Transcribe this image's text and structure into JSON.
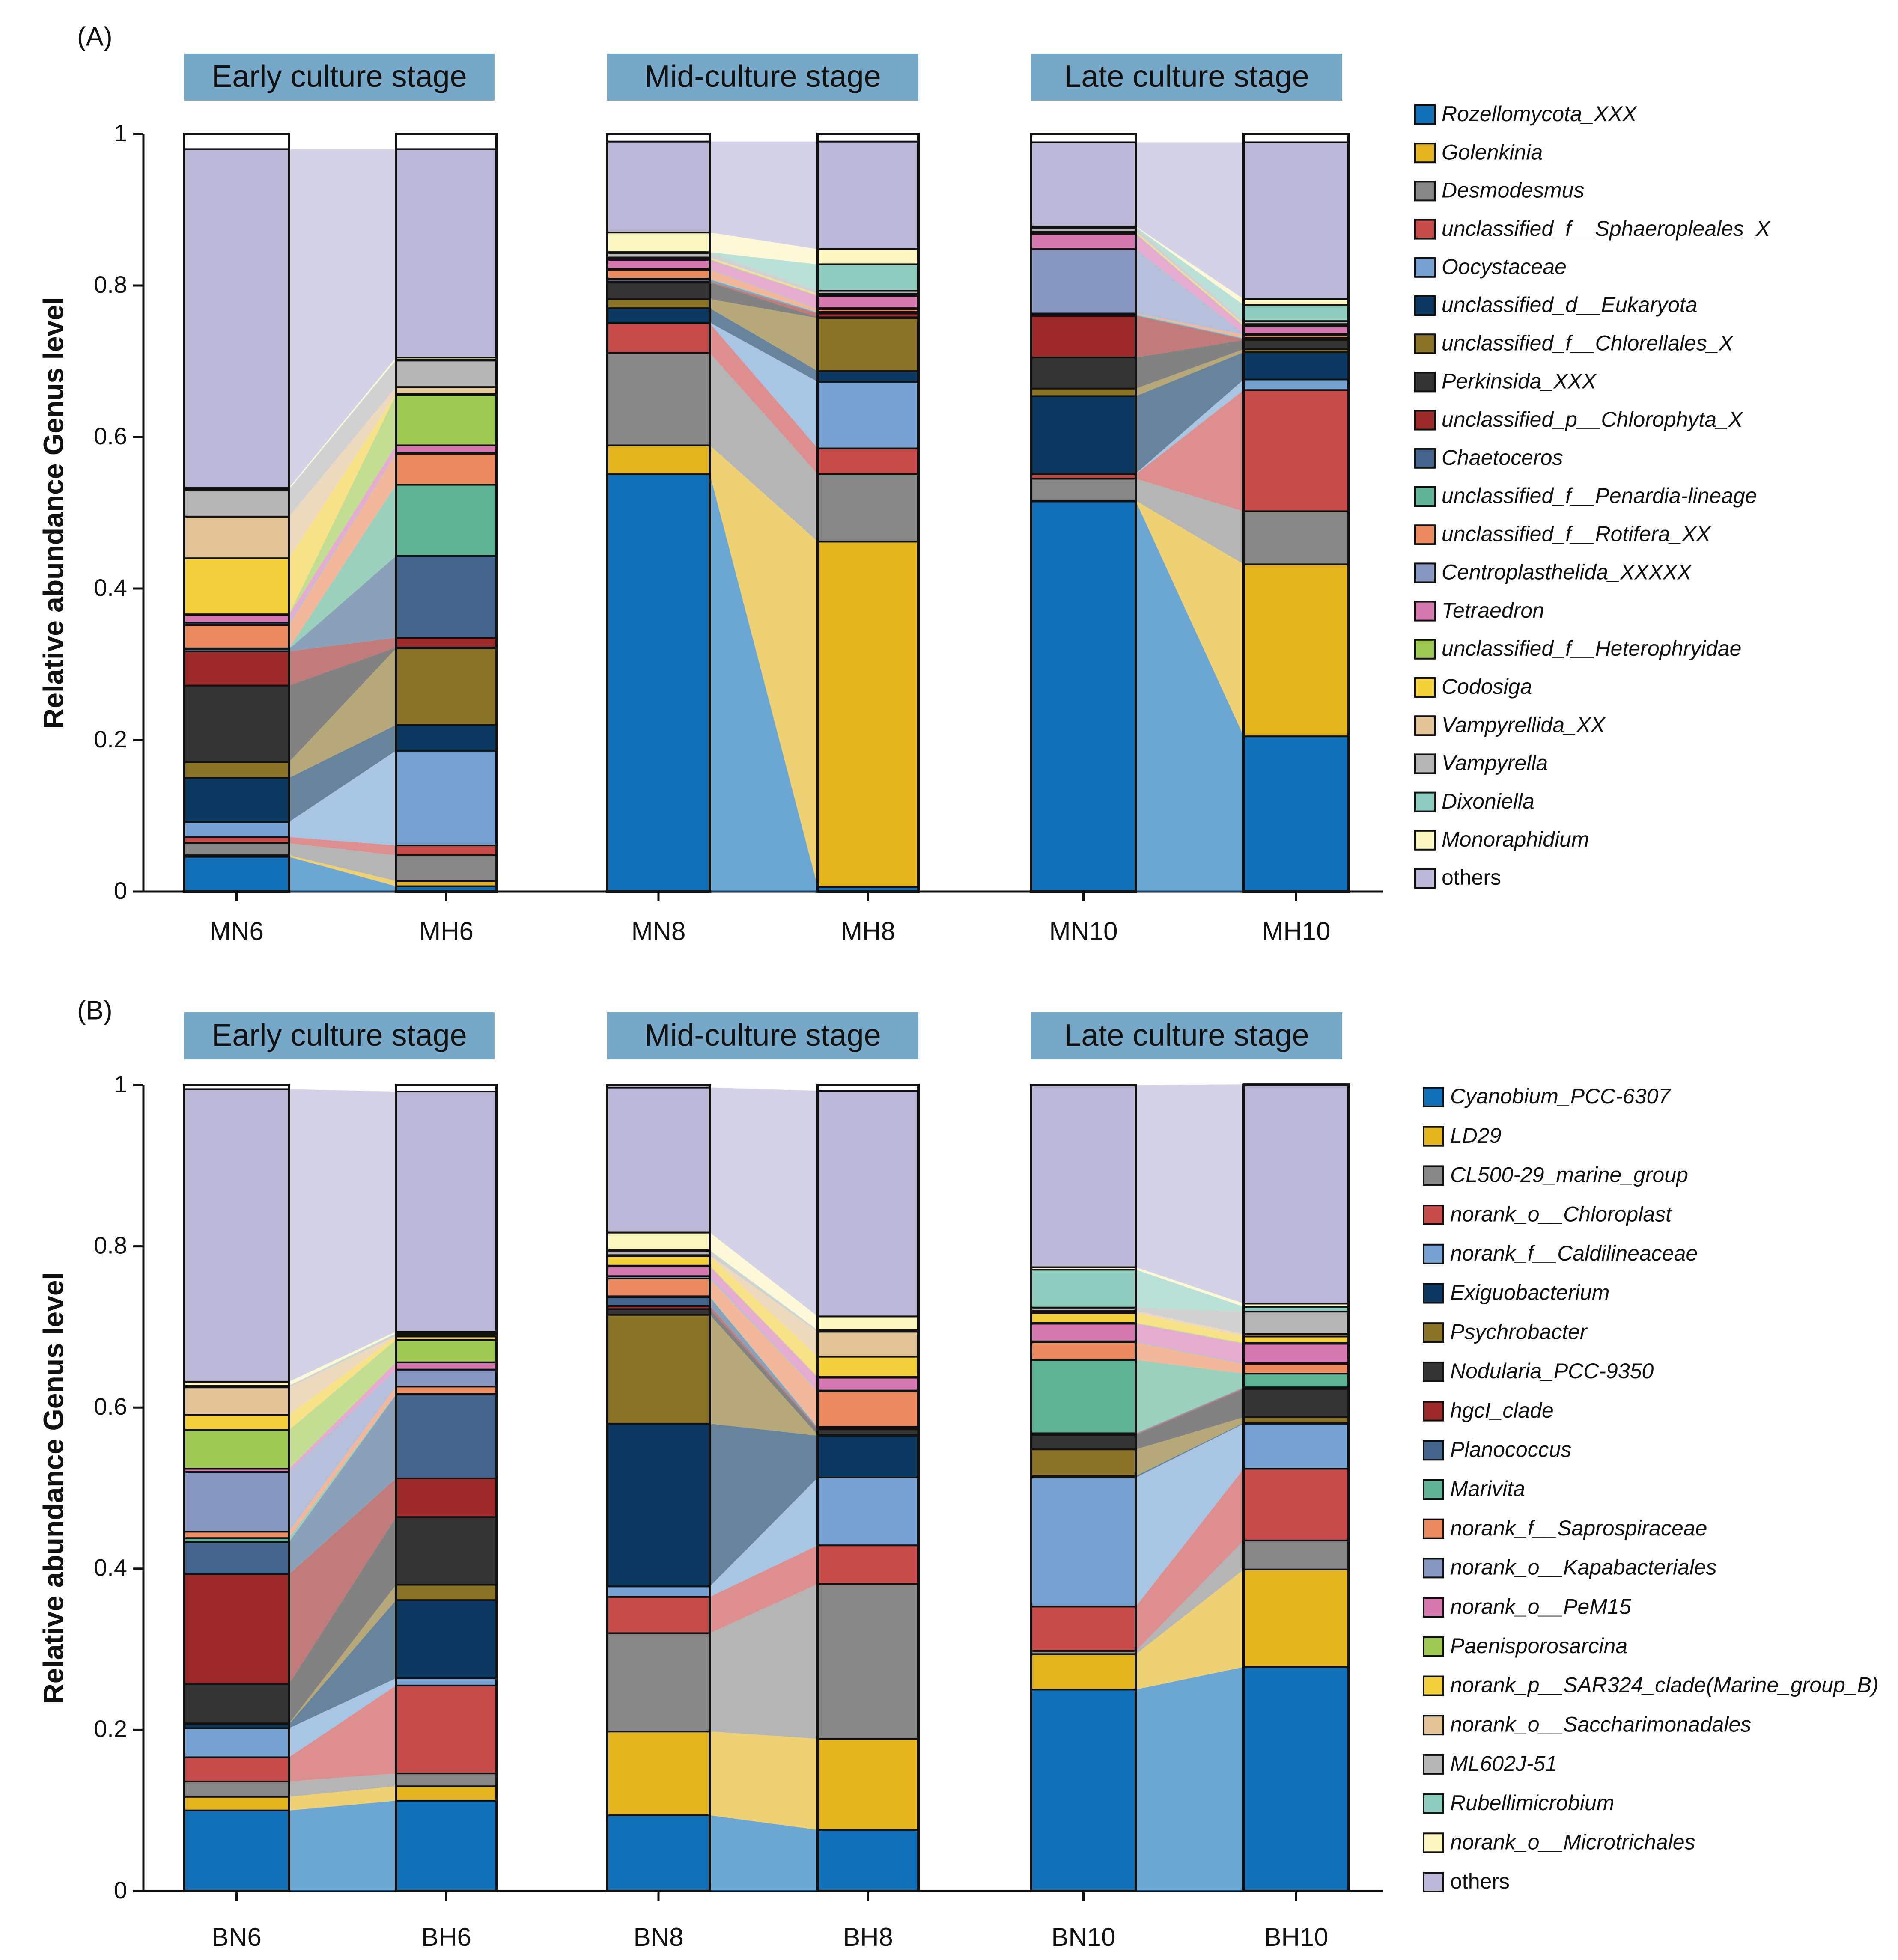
{
  "chart_data": [
    {
      "panel_label": "(A)",
      "type": "stacked-bar",
      "ylabel": "Relative abundance Genus level",
      "ylim": [
        0,
        1
      ],
      "yticks": [
        "0",
        "0.2",
        "0.4",
        "0.6",
        "0.8",
        "1"
      ],
      "stages": [
        "Early culture stage",
        "Mid-culture stage",
        "Late culture stage"
      ],
      "legend": [
        {
          "name": "Rozellomycota_XXX",
          "color": "#1170b8",
          "italic": true
        },
        {
          "name": "Golenkinia",
          "color": "#e4b41f",
          "italic": true
        },
        {
          "name": "Desmodesmus",
          "color": "#878787",
          "italic": true
        },
        {
          "name": "unclassified_f__Sphaeropleales_X",
          "color": "#c84b4b",
          "italic": true
        },
        {
          "name": "Oocystaceae",
          "color": "#75a2d3",
          "italic": true
        },
        {
          "name": "unclassified_d__Eukaryota",
          "color": "#0b3961",
          "italic": true
        },
        {
          "name": "unclassified_f__Chlorellales_X",
          "color": "#8a7227",
          "italic": true
        },
        {
          "name": "Perkinsida_XXX",
          "color": "#353535",
          "italic": true
        },
        {
          "name": "unclassified_p__Chlorophyta_X",
          "color": "#9c2a2a",
          "italic": true
        },
        {
          "name": "Chaetoceros",
          "color": "#44668e",
          "italic": true
        },
        {
          "name": "unclassified_f__Penardia-lineage",
          "color": "#5db394",
          "italic": true
        },
        {
          "name": "unclassified_f__Rotifera_XX",
          "color": "#ec8a5f",
          "italic": true
        },
        {
          "name": "Centroplasthelida_XXXXX",
          "color": "#8898c3",
          "italic": true
        },
        {
          "name": "Tetraedron",
          "color": "#d779b1",
          "italic": true
        },
        {
          "name": "unclassified_f__Heterophryidae",
          "color": "#9ec851",
          "italic": true
        },
        {
          "name": "Codosiga",
          "color": "#f4d03d",
          "italic": true
        },
        {
          "name": "Vampyrellida_XX",
          "color": "#e2c396",
          "italic": true
        },
        {
          "name": "Vampyrella",
          "color": "#b4b4b4",
          "italic": true
        },
        {
          "name": "Dixoniella",
          "color": "#8fcebe",
          "italic": true
        },
        {
          "name": "Monoraphidium",
          "color": "#fcf6c0",
          "italic": true
        },
        {
          "name": "others",
          "color": "#bab7d7",
          "italic": false
        }
      ],
      "samples": [
        {
          "name": "MN6",
          "values": [
            0.046,
            0.002,
            0.016,
            0.008,
            0.02,
            0.058,
            0.021,
            0.101,
            0.045,
            0.003,
            0.001,
            0.031,
            0.003,
            0.01,
            0.001,
            0.074,
            0.055,
            0.035,
            0.001,
            0.002,
            0.447
          ]
        },
        {
          "name": "MH6",
          "values": [
            0.007,
            0.007,
            0.034,
            0.013,
            0.125,
            0.034,
            0.101,
            0.001,
            0.013,
            0.108,
            0.094,
            0.041,
            0.001,
            0.01,
            0.067,
            0.001,
            0.009,
            0.035,
            0.001,
            0.003,
            0.275
          ]
        },
        {
          "name": "MN8",
          "values": [
            0.551,
            0.038,
            0.122,
            0.039,
            0.001,
            0.019,
            0.012,
            0.022,
            0.001,
            0.003,
            0.001,
            0.012,
            0.001,
            0.012,
            0.001,
            0.001,
            0.001,
            0.006,
            0.001,
            0.026,
            0.12
          ]
        },
        {
          "name": "MH8",
          "values": [
            0.006,
            0.456,
            0.089,
            0.034,
            0.088,
            0.014,
            0.07,
            0.001,
            0.005,
            0.001,
            0.001,
            0.004,
            0.001,
            0.016,
            0.001,
            0.001,
            0.001,
            0.004,
            0.035,
            0.02,
            0.142
          ]
        },
        {
          "name": "MN10",
          "values": [
            0.515,
            0.001,
            0.029,
            0.006,
            0.001,
            0.102,
            0.01,
            0.041,
            0.055,
            0.001,
            0.001,
            0.001,
            0.085,
            0.02,
            0.001,
            0.001,
            0.001,
            0.005,
            0.001,
            0.001,
            0.111
          ]
        },
        {
          "name": "MH10",
          "values": [
            0.205,
            0.227,
            0.07,
            0.16,
            0.014,
            0.036,
            0.004,
            0.012,
            0.001,
            0.001,
            0.001,
            0.004,
            0.001,
            0.01,
            0.001,
            0.001,
            0.001,
            0.004,
            0.021,
            0.008,
            0.207
          ]
        }
      ]
    },
    {
      "panel_label": "(B)",
      "type": "stacked-bar",
      "ylabel": "Relative abundance Genus level",
      "ylim": [
        0,
        1
      ],
      "yticks": [
        "0",
        "0.2",
        "0.4",
        "0.6",
        "0.8",
        "1"
      ],
      "stages": [
        "Early culture stage",
        "Mid-culture stage",
        "Late culture stage"
      ],
      "legend": [
        {
          "name": "Cyanobium_PCC-6307",
          "color": "#1170b8",
          "italic": true
        },
        {
          "name": "LD29",
          "color": "#e4b41f",
          "italic": true
        },
        {
          "name": "CL500-29_marine_group",
          "color": "#878787",
          "italic": true
        },
        {
          "name": "norank_o__Chloroplast",
          "color": "#c84b4b",
          "italic": true
        },
        {
          "name": "norank_f__Caldilineaceae",
          "color": "#75a2d3",
          "italic": true
        },
        {
          "name": "Exiguobacterium",
          "color": "#0b3961",
          "italic": true
        },
        {
          "name": "Psychrobacter",
          "color": "#8a7227",
          "italic": true
        },
        {
          "name": "Nodularia_PCC-9350",
          "color": "#353535",
          "italic": true
        },
        {
          "name": "hgcI_clade",
          "color": "#9c2a2a",
          "italic": true
        },
        {
          "name": "Planococcus",
          "color": "#44668e",
          "italic": true
        },
        {
          "name": "Marivita",
          "color": "#5db394",
          "italic": true
        },
        {
          "name": "norank_f__Saprospiraceae",
          "color": "#ec8a5f",
          "italic": true
        },
        {
          "name": "norank_o__Kapabacteriales",
          "color": "#8898c3",
          "italic": true
        },
        {
          "name": "norank_o__PeM15",
          "color": "#d779b1",
          "italic": true
        },
        {
          "name": "Paenisporosarcina",
          "color": "#9ec851",
          "italic": true
        },
        {
          "name": "norank_p__SAR324_clade(Marine_group_B)",
          "color": "#f4d03d",
          "italic": true
        },
        {
          "name": "norank_o__Saccharimonadales",
          "color": "#e2c396",
          "italic": true
        },
        {
          "name": "ML602J-51",
          "color": "#b4b4b4",
          "italic": true
        },
        {
          "name": "Rubellimicrobium",
          "color": "#8fcebe",
          "italic": true
        },
        {
          "name": "norank_o__Microtrichales",
          "color": "#fcf6c0",
          "italic": true
        },
        {
          "name": "others",
          "color": "#bab7d7",
          "italic": false
        }
      ],
      "samples": [
        {
          "name": "BN6",
          "values": [
            0.1,
            0.017,
            0.019,
            0.03,
            0.036,
            0.005,
            0.001,
            0.049,
            0.136,
            0.04,
            0.005,
            0.008,
            0.074,
            0.004,
            0.048,
            0.019,
            0.034,
            0.001,
            0.001,
            0.005,
            0.363
          ]
        },
        {
          "name": "BH6",
          "values": [
            0.112,
            0.018,
            0.016,
            0.109,
            0.009,
            0.097,
            0.019,
            0.084,
            0.048,
            0.104,
            0.001,
            0.009,
            0.021,
            0.009,
            0.028,
            0.004,
            0.001,
            0.002,
            0.001,
            0.002,
            0.298
          ]
        },
        {
          "name": "BN8",
          "values": [
            0.094,
            0.104,
            0.122,
            0.045,
            0.013,
            0.202,
            0.135,
            0.007,
            0.004,
            0.011,
            0.001,
            0.022,
            0.003,
            0.012,
            0.001,
            0.012,
            0.001,
            0.005,
            0.001,
            0.022,
            0.18
          ]
        },
        {
          "name": "BH8",
          "values": [
            0.076,
            0.113,
            0.192,
            0.048,
            0.084,
            0.052,
            0.001,
            0.007,
            0.001,
            0.001,
            0.001,
            0.044,
            0.001,
            0.016,
            0.001,
            0.025,
            0.031,
            0.001,
            0.001,
            0.017,
            0.28
          ]
        },
        {
          "name": "BN10",
          "values": [
            0.25,
            0.044,
            0.004,
            0.055,
            0.16,
            0.002,
            0.033,
            0.018,
            0.001,
            0.001,
            0.091,
            0.022,
            0.001,
            0.022,
            0.001,
            0.012,
            0.003,
            0.004,
            0.047,
            0.003,
            0.226
          ]
        },
        {
          "name": "BH10",
          "values": [
            0.278,
            0.121,
            0.036,
            0.089,
            0.056,
            0.001,
            0.007,
            0.035,
            0.001,
            0.001,
            0.017,
            0.012,
            0.001,
            0.024,
            0.001,
            0.008,
            0.003,
            0.028,
            0.006,
            0.004,
            0.272
          ]
        }
      ]
    }
  ]
}
